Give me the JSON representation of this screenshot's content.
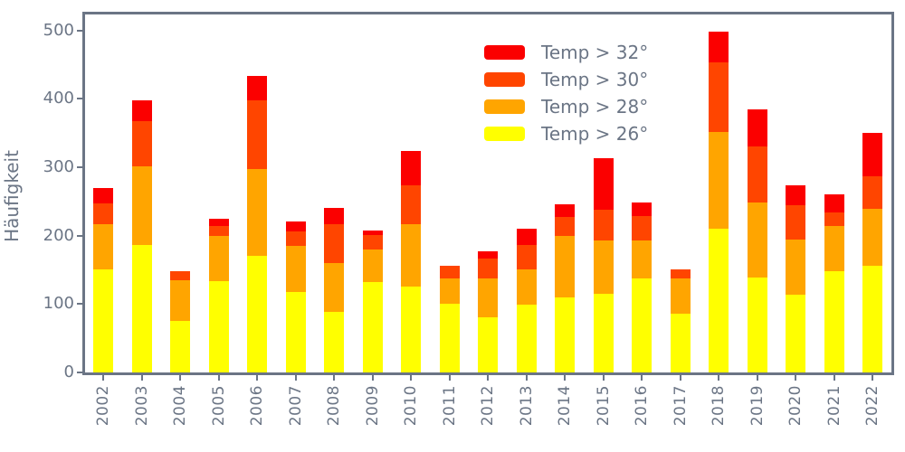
{
  "figure": {
    "background": "#ffffff",
    "axis_color": "#6b7585",
    "text_color": "#6b7585"
  },
  "chart_data": {
    "type": "bar",
    "stacked": true,
    "title": "",
    "xlabel": "",
    "ylabel": "Häufigkeit",
    "grid": false,
    "legend_position": "upper center",
    "ylim": [
      0,
      523
    ],
    "yticks": [
      0,
      100,
      200,
      300,
      400,
      500
    ],
    "categories": [
      "2002",
      "2003",
      "2004",
      "2005",
      "2006",
      "2007",
      "2008",
      "2009",
      "2010",
      "2011",
      "2012",
      "2013",
      "2014",
      "2015",
      "2016",
      "2017",
      "2018",
      "2019",
      "2020",
      "2021",
      "2022"
    ],
    "series": [
      {
        "name": "Temp > 32°",
        "color": "#fb0000",
        "values": [
          23,
          30,
          0,
          10,
          36,
          14,
          24,
          6,
          50,
          0,
          10,
          24,
          19,
          75,
          20,
          0,
          45,
          54,
          29,
          26,
          64
        ]
      },
      {
        "name": "Temp > 30°",
        "color": "#ff4500",
        "values": [
          30,
          66,
          13,
          14,
          100,
          21,
          57,
          21,
          57,
          19,
          30,
          36,
          27,
          45,
          36,
          13,
          102,
          82,
          51,
          20,
          47
        ]
      },
      {
        "name": "Temp > 28°",
        "color": "#ffa500",
        "values": [
          67,
          115,
          60,
          66,
          126,
          67,
          72,
          48,
          91,
          36,
          57,
          51,
          90,
          78,
          55,
          52,
          141,
          109,
          80,
          66,
          83
        ]
      },
      {
        "name": "Temp > 26°",
        "color": "#ffff00",
        "values": [
          150,
          186,
          75,
          134,
          171,
          118,
          88,
          132,
          125,
          101,
          80,
          99,
          110,
          115,
          138,
          86,
          210,
          139,
          114,
          148,
          156
        ]
      }
    ],
    "totals": [
      270,
      397,
      148,
      224,
      433,
      220,
      241,
      207,
      323,
      156,
      177,
      210,
      246,
      313,
      249,
      151,
      498,
      384,
      274,
      260,
      350
    ]
  }
}
